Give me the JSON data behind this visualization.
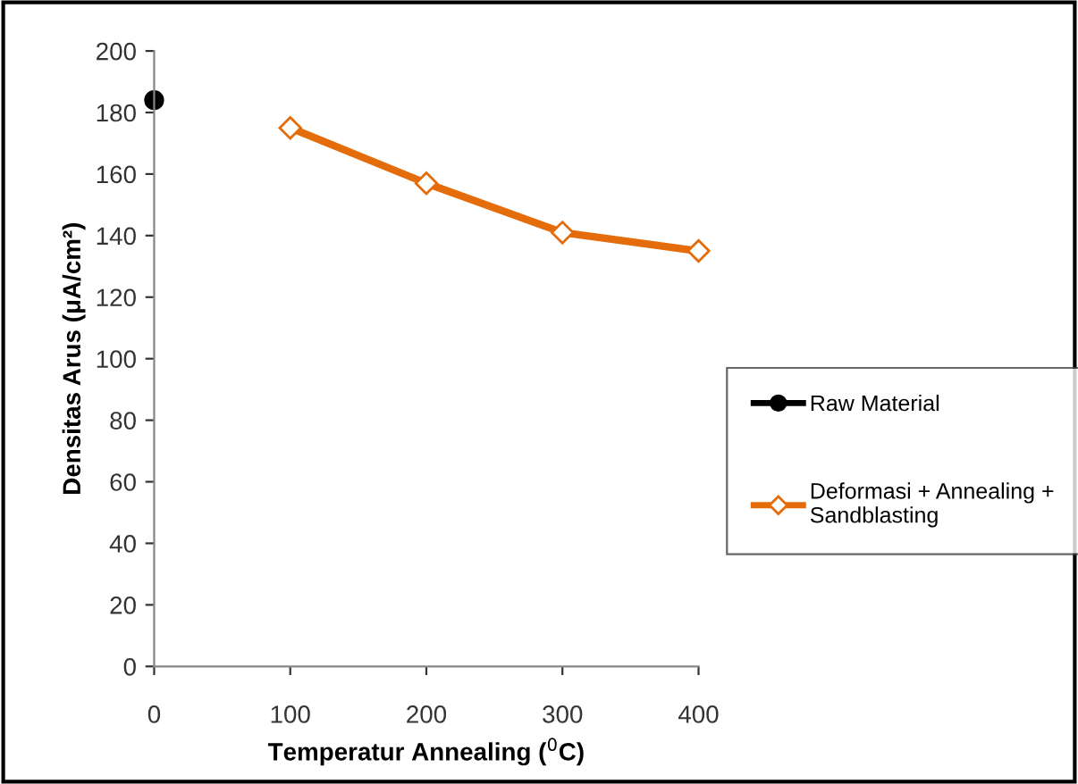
{
  "chart_data": {
    "type": "line",
    "xlabel": "Temperatur Annealing ($^{0}$C)",
    "ylabel": "Densitas Arus (μA/cm²)",
    "series": [
      {
        "name": "Raw Material",
        "color": "#000000",
        "type": "scatter",
        "marker": "circle",
        "x": [
          0
        ],
        "values": [
          184
        ]
      },
      {
        "name": "Deformasi + Annealing + Sandblasting",
        "color": "#e46c0a",
        "marker": "diamond",
        "x": [
          100,
          200,
          300,
          400
        ],
        "values": [
          175,
          157,
          141,
          135
        ]
      }
    ],
    "xlim": [
      0,
      400
    ],
    "xticks": [
      0,
      100,
      200,
      300,
      400
    ],
    "ylim": [
      0,
      200
    ],
    "yticks": [
      0,
      20,
      40,
      60,
      80,
      100,
      120,
      140,
      160,
      180,
      200
    ],
    "grid": false,
    "legend": "right"
  }
}
